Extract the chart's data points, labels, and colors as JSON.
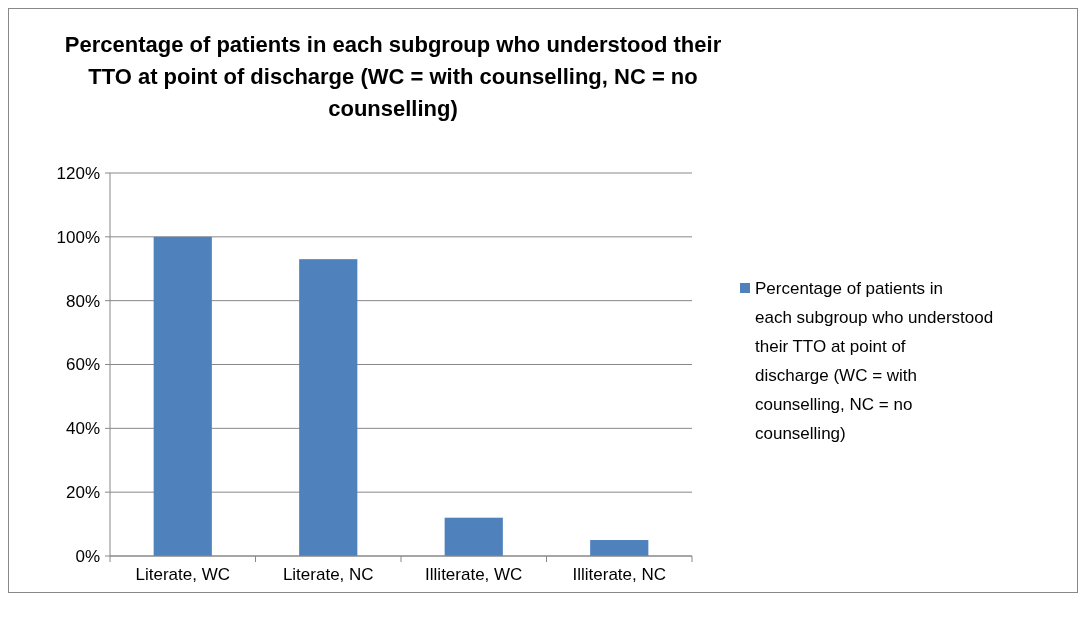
{
  "chart_data": {
    "type": "bar",
    "title": "Percentage of patients in each subgroup who understood their TTO at point of discharge (WC = with counselling, NC = no counselling)",
    "categories": [
      "Literate, WC",
      "Literate, NC",
      "Illiterate, WC",
      "Illiterate, NC"
    ],
    "series": [
      {
        "name": "Percentage of patients in each subgroup who understood their TTO at point of discharge (WC = with counselling, NC = no counselling)",
        "color": "#4f81bd",
        "values": [
          100,
          93,
          12,
          5
        ]
      }
    ],
    "ylim": [
      0,
      120
    ],
    "yticks": [
      {
        "value": 0,
        "label": "0%"
      },
      {
        "value": 20,
        "label": "20%"
      },
      {
        "value": 40,
        "label": "40%"
      },
      {
        "value": 60,
        "label": "60%"
      },
      {
        "value": 80,
        "label": "80%"
      },
      {
        "value": 100,
        "label": "100%"
      },
      {
        "value": 120,
        "label": "120%"
      }
    ],
    "grid": "y",
    "legend": "right"
  }
}
